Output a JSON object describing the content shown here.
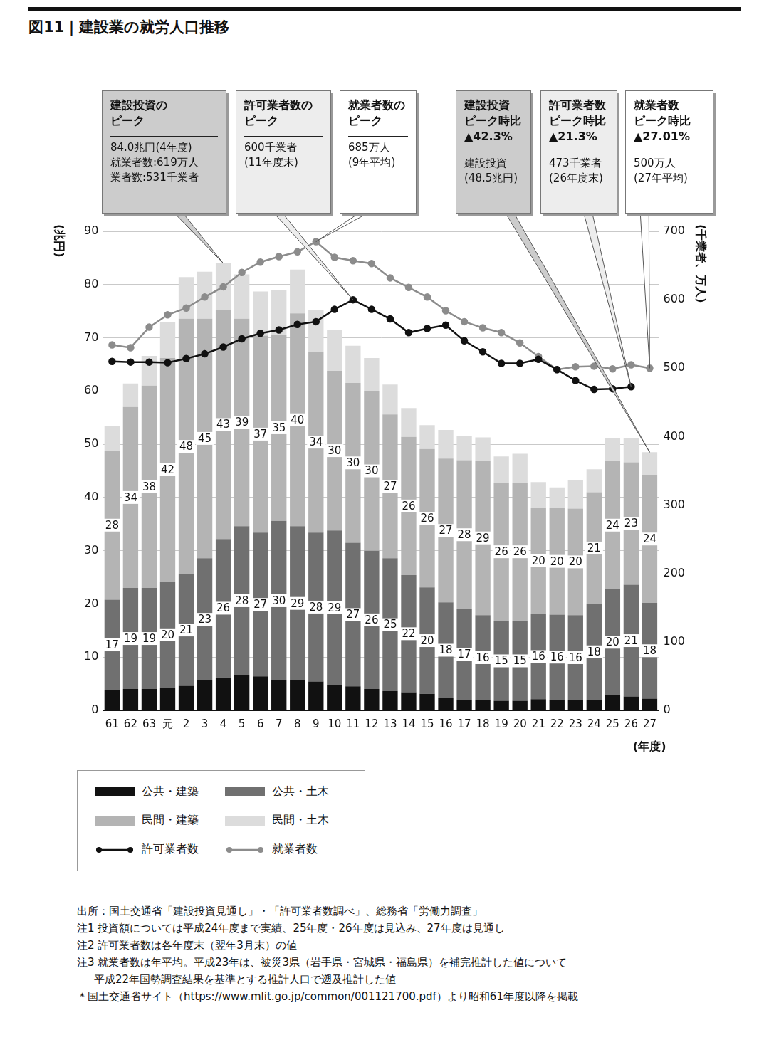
{
  "chart_data": {
    "type": "bar",
    "title": "図11｜建設業の就労人口推移",
    "stacked": true,
    "grid": true,
    "legend": "bottom-left",
    "x_label": "(年度)",
    "y_label": "(兆円)",
    "y2_label": "(千業者、万人)",
    "categories": [
      "61",
      "62",
      "63",
      "元",
      "2",
      "3",
      "4",
      "5",
      "6",
      "7",
      "8",
      "9",
      "10",
      "11",
      "12",
      "13",
      "14",
      "15",
      "16",
      "17",
      "18",
      "19",
      "20",
      "21",
      "22",
      "23",
      "24",
      "25",
      "26",
      "27"
    ],
    "ylim": [
      0,
      90
    ],
    "yticks": [
      0,
      10,
      20,
      30,
      40,
      50,
      60,
      70,
      80,
      90
    ],
    "y2lim": [
      0,
      700
    ],
    "y2ticks": [
      0,
      100,
      200,
      300,
      400,
      500,
      600,
      700
    ],
    "series": [
      {
        "name": "公共・建築",
        "color": "#111111",
        "values": [
          3.8,
          4.0,
          4.0,
          4.2,
          4.6,
          5.6,
          6.2,
          6.6,
          6.4,
          5.6,
          5.6,
          5.4,
          4.8,
          4.5,
          4.0,
          3.6,
          3.4,
          3.1,
          2.3,
          2.0,
          1.9,
          1.8,
          1.8,
          2.1,
          2.0,
          1.9,
          2.0,
          2.8,
          2.6,
          2.2
        ]
      },
      {
        "name": "公共・土木",
        "color": "#707070",
        "data_labels": true,
        "values": [
          17,
          19,
          19,
          20,
          21,
          23,
          26,
          28,
          27,
          30,
          29,
          28,
          29,
          27,
          26,
          25,
          22,
          20,
          18,
          17,
          16,
          15,
          15,
          16,
          16,
          16,
          18,
          20,
          21,
          18
        ]
      },
      {
        "name": "民間・建築",
        "color": "#b4b4b4",
        "data_labels": true,
        "values": [
          28,
          34,
          38,
          42,
          48,
          45,
          43,
          39,
          37,
          35,
          40,
          34,
          30,
          30,
          30,
          27,
          26,
          26,
          27,
          28,
          29,
          26,
          26,
          20,
          20,
          20,
          21,
          24,
          23,
          24
        ]
      },
      {
        "name": "民間・土木",
        "color": "#dcdcdc",
        "values": [
          4.7,
          4.4,
          5.6,
          6.8,
          7.8,
          8.8,
          8.8,
          8.3,
          8.3,
          8.4,
          8.2,
          7.8,
          7.6,
          7.0,
          6.2,
          5.6,
          5.4,
          4.5,
          5.4,
          4.6,
          4.4,
          4.9,
          5.4,
          4.8,
          3.9,
          5.4,
          4.3,
          4.4,
          4.6,
          4.3
        ]
      },
      {
        "name": "許可業者数",
        "type": "line",
        "axis": "y2",
        "color": "#111111",
        "marker": "circle",
        "line_style": "solid",
        "values": [
          510,
          509,
          509,
          508,
          514,
          521,
          531,
          543,
          551,
          556,
          564,
          568,
          586,
          600,
          586,
          572,
          552,
          558,
          563,
          540,
          524,
          507,
          507,
          513,
          498,
          482,
          469,
          470,
          473,
          null
        ]
      },
      {
        "name": "就業者数",
        "type": "line",
        "axis": "y2",
        "color": "#8c8c8c",
        "marker": "circle",
        "line_style": "solid",
        "values": [
          534,
          530,
          560,
          578,
          588,
          604,
          619,
          640,
          655,
          663,
          670,
          685,
          662,
          657,
          653,
          632,
          618,
          604,
          584,
          568,
          559,
          552,
          537,
          517,
          498,
          502,
          503,
          499,
          505,
          500
        ]
      }
    ],
    "annotations": [
      {
        "heading": [
          "建設投資の",
          "ピーク"
        ],
        "lines": [
          "84.0兆円(4年度)",
          "就業者数:619万人",
          "業者数:531千業者"
        ],
        "category": "4",
        "series": "民間・土木",
        "color": "#cccccc"
      },
      {
        "heading": [
          "許可業者数の",
          "ピーク"
        ],
        "lines": [
          "600千業者",
          "(11年度末)"
        ],
        "category": "11",
        "series": "許可業者数",
        "color": "#ededed"
      },
      {
        "heading": [
          "就業者数の",
          "ピーク"
        ],
        "lines": [
          "685万人",
          "(9年平均)"
        ],
        "category": "9",
        "series": "就業者数",
        "color": "#ffffff"
      },
      {
        "heading": [
          "建設投資",
          "ピーク時比",
          "▲42.3%"
        ],
        "lines": [
          "建設投資",
          "(48.5兆円)"
        ],
        "category": "27",
        "series": "民間・土木",
        "color": "#cccccc"
      },
      {
        "heading": [
          "許可業者数",
          "ピーク時比",
          "▲21.3%"
        ],
        "lines": [
          "473千業者",
          "(26年度末)"
        ],
        "category": "26",
        "series": "許可業者数",
        "color": "#ededed"
      },
      {
        "heading": [
          "就業者数",
          "ピーク時比",
          "▲27.01%"
        ],
        "lines": [
          "500万人",
          "(27年平均)"
        ],
        "category": "27",
        "series": "就業者数",
        "color": "#ffffff"
      }
    ]
  },
  "footnotes": [
    [
      "出所：国土交通省「建設投資見通し」・「許可業者数調べ」、総務省「労働力調査」"
    ],
    [
      "注1 投資額については平成24年度まで実績、25年度・26年度は見込み、27年度は見通し"
    ],
    [
      "注2 許可業者数は各年度末（翌年3月末）の値"
    ],
    [
      "注3 就業者数は年平均。平成23年は、被災3県（岩手県・宮城県・福島県）を補完推計した値について",
      "平成22年国勢調査結果を基準とする推計人口で遡及推計した値"
    ],
    [
      "＊国土交通省サイト（https://www.mlit.go.jp/common/001121700.pdf）より昭和61年度以降を掲載"
    ]
  ]
}
